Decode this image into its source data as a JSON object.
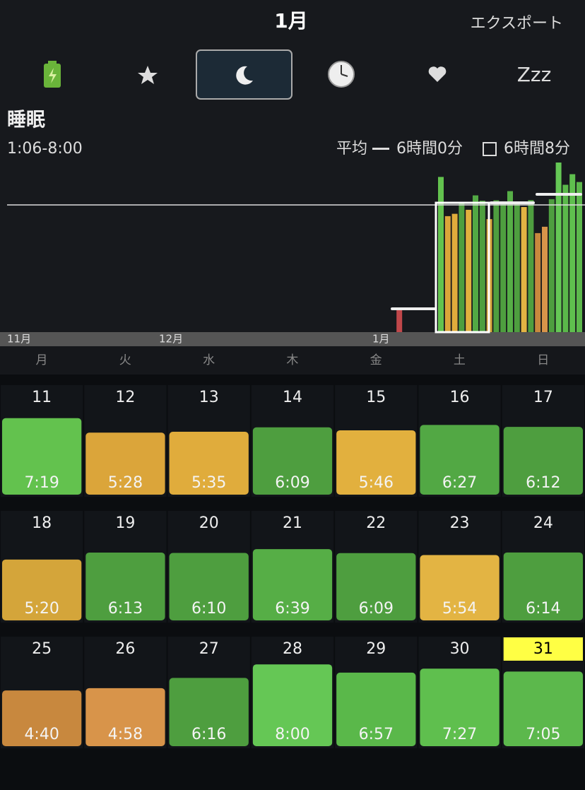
{
  "header": {
    "title": "1月",
    "export": "エクスポート"
  },
  "tabs": {
    "labels": [
      "Zzz"
    ]
  },
  "section": {
    "title": "睡眠",
    "range": "1:06-8:00",
    "average_label": "平均",
    "average": "6時間0分",
    "goal": "6時間8分"
  },
  "chart": {
    "months": [
      "11月",
      "12月",
      "1月"
    ],
    "ylim": [
      0,
      8
    ],
    "average_hours": 6,
    "week_averages": [
      1.1,
      6.1,
      6.5
    ],
    "extra_bars": [
      {
        "day": 5,
        "hours": 1.1,
        "color": "#c0474a"
      }
    ]
  },
  "weekdays": [
    "月",
    "火",
    "水",
    "木",
    "金",
    "土",
    "日"
  ],
  "calendar": {
    "highlight_day": 31,
    "cells": [
      {
        "day": 11,
        "time": "7:19",
        "hours": 7.32,
        "color": "#63c24e"
      },
      {
        "day": 12,
        "time": "5:28",
        "hours": 5.47,
        "color": "#dba53a"
      },
      {
        "day": 13,
        "time": "5:35",
        "hours": 5.58,
        "color": "#e0ac3c"
      },
      {
        "day": 14,
        "time": "6:09",
        "hours": 6.15,
        "color": "#4e9e3f"
      },
      {
        "day": 15,
        "time": "5:46",
        "hours": 5.77,
        "color": "#e2b03e"
      },
      {
        "day": 16,
        "time": "6:27",
        "hours": 6.45,
        "color": "#52a844"
      },
      {
        "day": 17,
        "time": "6:12",
        "hours": 6.2,
        "color": "#4e9e3f"
      },
      {
        "day": 18,
        "time": "5:20",
        "hours": 5.33,
        "color": "#d4a53a"
      },
      {
        "day": 19,
        "time": "6:13",
        "hours": 6.22,
        "color": "#4e9e3f"
      },
      {
        "day": 20,
        "time": "6:10",
        "hours": 6.17,
        "color": "#4e9e3f"
      },
      {
        "day": 21,
        "time": "6:39",
        "hours": 6.65,
        "color": "#56ae46"
      },
      {
        "day": 22,
        "time": "6:09",
        "hours": 6.15,
        "color": "#4e9e3f"
      },
      {
        "day": 23,
        "time": "5:54",
        "hours": 5.9,
        "color": "#e3b443"
      },
      {
        "day": 24,
        "time": "6:14",
        "hours": 6.23,
        "color": "#4e9e3f"
      },
      {
        "day": 25,
        "time": "4:40",
        "hours": 4.67,
        "color": "#c8883e"
      },
      {
        "day": 26,
        "time": "4:58",
        "hours": 4.97,
        "color": "#d8944a"
      },
      {
        "day": 27,
        "time": "6:16",
        "hours": 6.27,
        "color": "#4e9e3f"
      },
      {
        "day": 28,
        "time": "8:00",
        "hours": 8,
        "color": "#65c755"
      },
      {
        "day": 29,
        "time": "6:57",
        "hours": 6.95,
        "color": "#5ab84a"
      },
      {
        "day": 30,
        "time": "7:27",
        "hours": 7.45,
        "color": "#5fbf4e"
      },
      {
        "day": 31,
        "time": "7:05",
        "hours": 7.08,
        "color": "#5cb84c"
      }
    ]
  }
}
